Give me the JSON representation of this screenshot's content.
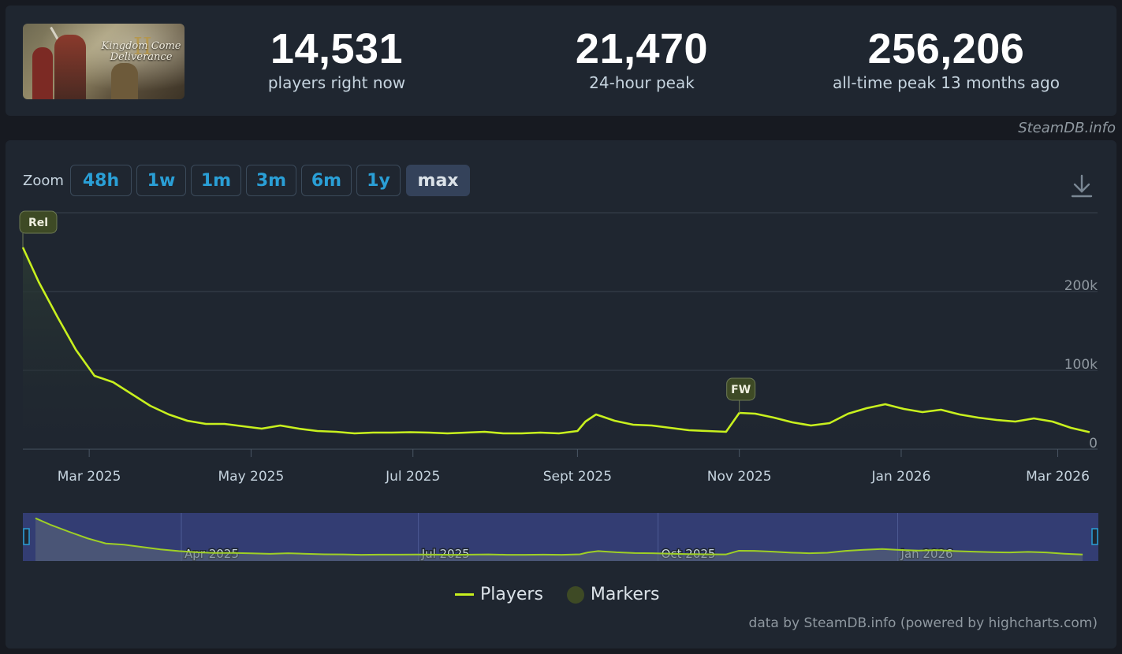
{
  "stats": {
    "current": {
      "value": "14,531",
      "label": "players right now"
    },
    "peak24": {
      "value": "21,470",
      "label": "24-hour peak"
    },
    "alltime": {
      "value": "256,206",
      "label": "all-time peak 13 months ago"
    }
  },
  "cover": {
    "title": "Kingdom Come Deliverance",
    "numeral": "II"
  },
  "credit_top": "SteamDB.info",
  "zoom": {
    "label": "Zoom",
    "buttons": [
      "48h",
      "1w",
      "1m",
      "3m",
      "6m",
      "1y",
      "max"
    ],
    "active": "max"
  },
  "legend": {
    "players": "Players",
    "markers": "Markers"
  },
  "powered": "data by SteamDB.info (powered by highcharts.com)",
  "colors": {
    "line": "#c8f01e",
    "marker": "#3e4a25",
    "accent": "#2a9fd6"
  },
  "chart_data": {
    "type": "line",
    "series": [
      {
        "name": "Players",
        "x": [
          "2025-02-04",
          "2025-02-10",
          "2025-02-17",
          "2025-02-24",
          "2025-03-03",
          "2025-03-10",
          "2025-03-17",
          "2025-03-24",
          "2025-03-31",
          "2025-04-07",
          "2025-04-14",
          "2025-04-21",
          "2025-04-28",
          "2025-05-05",
          "2025-05-12",
          "2025-05-19",
          "2025-05-26",
          "2025-06-02",
          "2025-06-09",
          "2025-06-16",
          "2025-06-23",
          "2025-06-30",
          "2025-07-07",
          "2025-07-14",
          "2025-07-21",
          "2025-07-28",
          "2025-08-04",
          "2025-08-11",
          "2025-08-18",
          "2025-08-25",
          "2025-09-01",
          "2025-09-04",
          "2025-09-08",
          "2025-09-15",
          "2025-09-22",
          "2025-09-29",
          "2025-10-06",
          "2025-10-13",
          "2025-10-20",
          "2025-10-27",
          "2025-11-01",
          "2025-11-07",
          "2025-11-14",
          "2025-11-21",
          "2025-11-28",
          "2025-12-05",
          "2025-12-12",
          "2025-12-19",
          "2025-12-26",
          "2026-01-02",
          "2026-01-09",
          "2026-01-16",
          "2026-01-23",
          "2026-01-30",
          "2026-02-06",
          "2026-02-13",
          "2026-02-20",
          "2026-02-27",
          "2026-03-06",
          "2026-03-13"
        ],
        "values": [
          256000,
          212000,
          168000,
          126000,
          93000,
          85000,
          70000,
          55000,
          44000,
          36000,
          32000,
          32000,
          29000,
          26000,
          30000,
          26000,
          23000,
          22000,
          20000,
          21000,
          21000,
          21500,
          21000,
          20000,
          21000,
          22000,
          20000,
          20000,
          21000,
          20000,
          23000,
          35000,
          44000,
          36000,
          31000,
          30000,
          27000,
          24000,
          23000,
          22000,
          46000,
          45000,
          40000,
          34000,
          30000,
          33000,
          45000,
          52000,
          57000,
          51000,
          47000,
          50000,
          44000,
          40000,
          37000,
          35000,
          39000,
          35000,
          27000,
          21470
        ]
      }
    ],
    "markers": [
      {
        "label": "Rel",
        "x": "2025-02-04"
      },
      {
        "label": "FW",
        "x": "2025-11-01"
      }
    ],
    "x_ticks": [
      "Mar 2025",
      "May 2025",
      "Jul 2025",
      "Sept 2025",
      "Nov 2025",
      "Jan 2026",
      "Mar 2026"
    ],
    "x_tick_dates": [
      "2025-03-01",
      "2025-05-01",
      "2025-07-01",
      "2025-09-01",
      "2025-11-01",
      "2026-01-01",
      "2026-03-01"
    ],
    "y_ticks": [
      "0",
      "100k",
      "200k"
    ],
    "y_tick_values": [
      0,
      100000,
      200000
    ],
    "ylim": [
      0,
      300000
    ],
    "xlim": [
      "2025-02-04",
      "2026-03-16"
    ],
    "navigator_ticks": [
      "Apr 2025",
      "Jul 2025",
      "Oct 2025",
      "Jan 2026"
    ],
    "navigator_tick_dates": [
      "2025-04-01",
      "2025-07-01",
      "2025-10-01",
      "2026-01-01"
    ],
    "grid": true
  }
}
